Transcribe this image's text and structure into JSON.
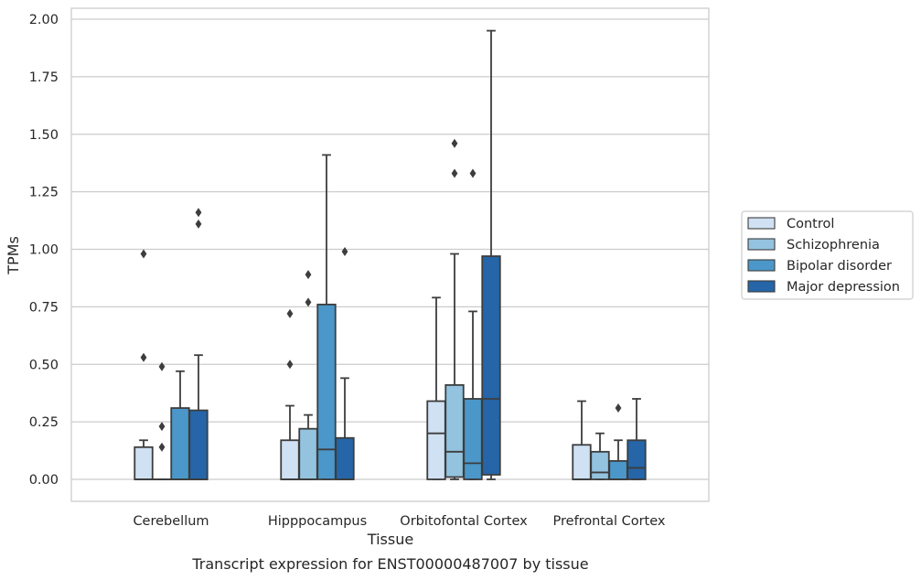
{
  "chart_data": {
    "type": "box",
    "title": "Transcript expression for ENST00000487007 by tissue",
    "xlabel": "Tissue",
    "ylabel": "TPMs",
    "ylim": [
      -0.095,
      2.05
    ],
    "yticks": [
      "0.00",
      "0.25",
      "0.50",
      "0.75",
      "1.00",
      "1.25",
      "1.50",
      "1.75",
      "2.00"
    ],
    "ytick_values": [
      0,
      0.25,
      0.5,
      0.75,
      1.0,
      1.25,
      1.5,
      1.75,
      2.0
    ],
    "categories": [
      "Cerebellum",
      "Hipppocampus",
      "Orbitofontal Cortex",
      "Prefrontal Cortex"
    ],
    "grid": "horizontal",
    "legend_position": "right",
    "series": [
      {
        "name": "Control",
        "color": "#cfe1f2",
        "boxes": [
          {
            "whislo": 0.0,
            "q1": 0.0,
            "med": 0.0,
            "q3": 0.14,
            "whishi": 0.17,
            "fliers": [
              0.53,
              0.98
            ]
          },
          {
            "whislo": 0.0,
            "q1": 0.0,
            "med": 0.0,
            "q3": 0.17,
            "whishi": 0.32,
            "fliers": [
              0.5,
              0.72
            ]
          },
          {
            "whislo": 0.0,
            "q1": 0.0,
            "med": 0.2,
            "q3": 0.34,
            "whishi": 0.79,
            "fliers": []
          },
          {
            "whislo": 0.0,
            "q1": 0.0,
            "med": 0.0,
            "q3": 0.15,
            "whishi": 0.34,
            "fliers": []
          }
        ]
      },
      {
        "name": "Schizophrenia",
        "color": "#93c3df",
        "boxes": [
          {
            "whislo": 0.0,
            "q1": 0.0,
            "med": 0.0,
            "q3": 0.0,
            "whishi": 0.0,
            "fliers": [
              0.14,
              0.23,
              0.49
            ]
          },
          {
            "whislo": 0.0,
            "q1": 0.0,
            "med": 0.0,
            "q3": 0.22,
            "whishi": 0.28,
            "fliers": [
              0.77,
              0.89
            ]
          },
          {
            "whislo": 0.0,
            "q1": 0.01,
            "med": 0.12,
            "q3": 0.41,
            "whishi": 0.98,
            "fliers": [
              1.33,
              1.46
            ]
          },
          {
            "whislo": 0.0,
            "q1": 0.0,
            "med": 0.03,
            "q3": 0.12,
            "whishi": 0.2,
            "fliers": []
          }
        ]
      },
      {
        "name": "Bipolar disorder",
        "color": "#4b97c9",
        "boxes": [
          {
            "whislo": 0.0,
            "q1": 0.0,
            "med": 0.0,
            "q3": 0.31,
            "whishi": 0.47,
            "fliers": []
          },
          {
            "whislo": 0.0,
            "q1": 0.0,
            "med": 0.13,
            "q3": 0.76,
            "whishi": 1.41,
            "fliers": []
          },
          {
            "whislo": 0.0,
            "q1": 0.0,
            "med": 0.07,
            "q3": 0.35,
            "whishi": 0.73,
            "fliers": [
              1.33
            ]
          },
          {
            "whislo": 0.0,
            "q1": 0.0,
            "med": 0.0,
            "q3": 0.08,
            "whishi": 0.17,
            "fliers": [
              0.31
            ]
          }
        ]
      },
      {
        "name": "Major depression",
        "color": "#2565a8",
        "boxes": [
          {
            "whislo": 0.0,
            "q1": 0.0,
            "med": 0.0,
            "q3": 0.3,
            "whishi": 0.54,
            "fliers": [
              1.11,
              1.16
            ]
          },
          {
            "whislo": 0.0,
            "q1": 0.0,
            "med": 0.0,
            "q3": 0.18,
            "whishi": 0.44,
            "fliers": [
              0.99
            ]
          },
          {
            "whislo": 0.0,
            "q1": 0.02,
            "med": 0.35,
            "q3": 0.97,
            "whishi": 1.95,
            "fliers": []
          },
          {
            "whislo": 0.0,
            "q1": 0.0,
            "med": 0.05,
            "q3": 0.17,
            "whishi": 0.35,
            "fliers": []
          }
        ]
      }
    ]
  }
}
